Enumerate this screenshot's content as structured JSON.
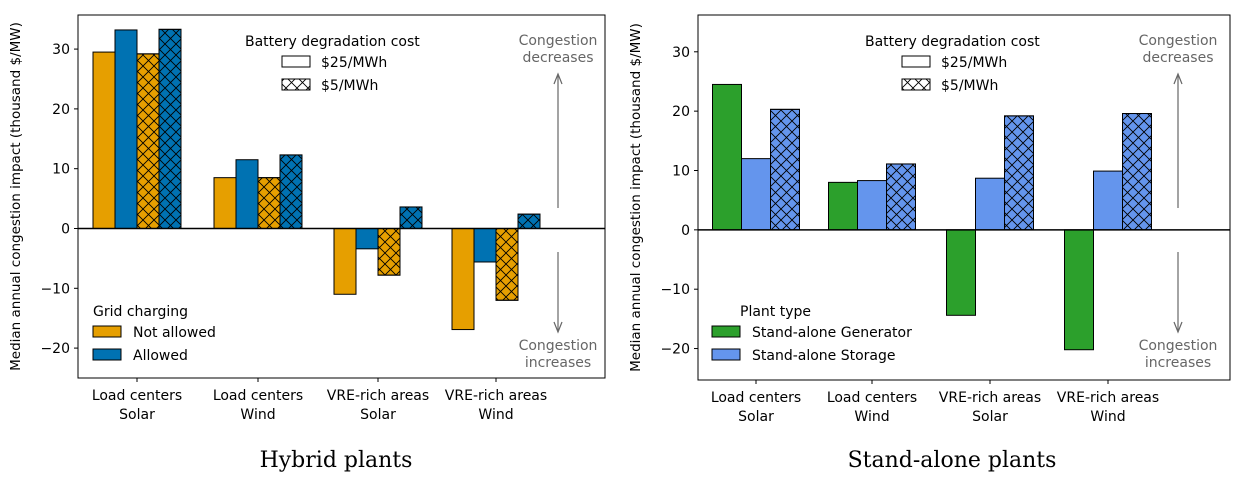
{
  "colors": {
    "not_allowed": "#E69F00",
    "allowed": "#0072B2",
    "generator": "#2CA02C",
    "storage": "#6495ED"
  },
  "chart_data": [
    {
      "type": "bar",
      "title": "Hybrid plants",
      "ylabel": "Median annual congestion impact (thousand $/MW)",
      "ylim": [
        -25,
        35.7
      ],
      "yticks": [
        -20,
        -10,
        0,
        10,
        20,
        30
      ],
      "categories": [
        "Load centers\nSolar",
        "Load centers\nWind",
        "VRE-rich areas\nSolar",
        "VRE-rich areas\nWind"
      ],
      "series": [
        {
          "name": "Not allowed, $25/MWh",
          "color_key": "not_allowed",
          "hatch": false,
          "values": [
            29.5,
            8.5,
            -11.0,
            -16.9
          ]
        },
        {
          "name": "Allowed, $25/MWh",
          "color_key": "allowed",
          "hatch": false,
          "values": [
            33.2,
            11.5,
            -3.4,
            -5.6
          ]
        },
        {
          "name": "Not allowed, $5/MWh",
          "color_key": "not_allowed",
          "hatch": true,
          "values": [
            29.2,
            8.5,
            -7.8,
            -12.0
          ]
        },
        {
          "name": "Allowed, $5/MWh",
          "color_key": "allowed",
          "hatch": true,
          "values": [
            33.3,
            12.3,
            3.6,
            2.4
          ]
        }
      ],
      "legend_cost": {
        "title": "Battery degradation cost",
        "items": [
          "$25/MWh",
          "$5/MWh"
        ]
      },
      "legend_type": {
        "title": "Grid charging",
        "items": [
          "Not allowed",
          "Allowed"
        ]
      },
      "annotations": {
        "top": "Congestion\ndecreases",
        "bottom": "Congestion\nincreases"
      }
    },
    {
      "type": "bar",
      "title": "Stand-alone plants",
      "ylabel": "Median annual congestion impact (thousand $/MW)",
      "ylim": [
        -25.3,
        36.2
      ],
      "yticks": [
        -20,
        -10,
        0,
        10,
        20,
        30
      ],
      "categories": [
        "Load centers\nSolar",
        "Load centers\nWind",
        "VRE-rich areas\nSolar",
        "VRE-rich areas\nWind"
      ],
      "series": [
        {
          "name": "Stand-alone Generator",
          "color_key": "generator",
          "hatch": false,
          "values": [
            24.5,
            8.0,
            -14.4,
            -20.2
          ]
        },
        {
          "name": "Stand-alone Storage, $25/MWh",
          "color_key": "storage",
          "hatch": false,
          "values": [
            12.0,
            8.3,
            8.7,
            9.9
          ]
        },
        {
          "name": "Stand-alone Storage, $5/MWh",
          "color_key": "storage",
          "hatch": true,
          "values": [
            20.3,
            11.1,
            19.2,
            19.6
          ]
        }
      ],
      "legend_cost": {
        "title": "Battery degradation cost",
        "items": [
          "$25/MWh",
          "$5/MWh"
        ]
      },
      "legend_type": {
        "title": "Plant type",
        "items": [
          "Stand-alone Generator",
          "Stand-alone Storage"
        ]
      },
      "annotations": {
        "top": "Congestion\ndecreases",
        "bottom": "Congestion\nincreases"
      }
    }
  ]
}
